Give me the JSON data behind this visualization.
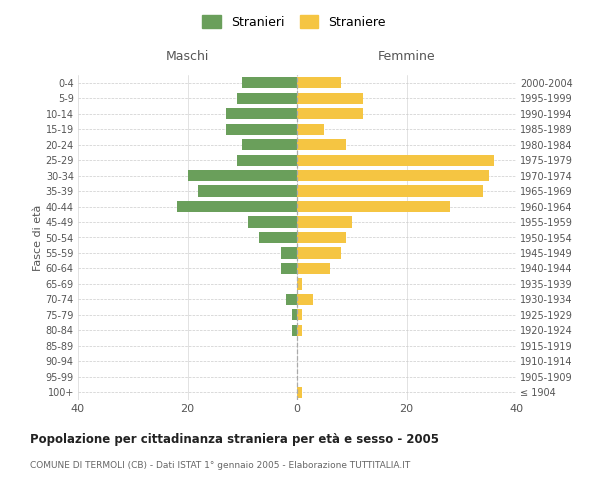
{
  "age_groups": [
    "100+",
    "95-99",
    "90-94",
    "85-89",
    "80-84",
    "75-79",
    "70-74",
    "65-69",
    "60-64",
    "55-59",
    "50-54",
    "45-49",
    "40-44",
    "35-39",
    "30-34",
    "25-29",
    "20-24",
    "15-19",
    "10-14",
    "5-9",
    "0-4"
  ],
  "birth_years": [
    "≤ 1904",
    "1905-1909",
    "1910-1914",
    "1915-1919",
    "1920-1924",
    "1925-1929",
    "1930-1934",
    "1935-1939",
    "1940-1944",
    "1945-1949",
    "1950-1954",
    "1955-1959",
    "1960-1964",
    "1965-1969",
    "1970-1974",
    "1975-1979",
    "1980-1984",
    "1985-1989",
    "1990-1994",
    "1995-1999",
    "2000-2004"
  ],
  "maschi": [
    0,
    0,
    0,
    0,
    1,
    1,
    2,
    0,
    3,
    3,
    7,
    9,
    22,
    18,
    20,
    11,
    10,
    13,
    13,
    11,
    10
  ],
  "femmine": [
    1,
    0,
    0,
    0,
    1,
    1,
    3,
    1,
    6,
    8,
    9,
    10,
    28,
    34,
    35,
    36,
    9,
    5,
    12,
    12,
    8
  ],
  "maschi_color": "#6a9f5b",
  "femmine_color": "#f5c542",
  "title": "Popolazione per cittadinanza straniera per età e sesso - 2005",
  "subtitle": "COMUNE DI TERMOLI (CB) - Dati ISTAT 1° gennaio 2005 - Elaborazione TUTTITALIA.IT",
  "xlabel_left": "Maschi",
  "xlabel_right": "Femmine",
  "ylabel_left": "Fasce di età",
  "legend_stranieri": "Stranieri",
  "legend_straniere": "Straniere",
  "xlim": 40,
  "background_color": "#ffffff",
  "grid_color": "#cccccc",
  "bar_height": 0.72,
  "dashed_line_color": "#aaaaaa"
}
